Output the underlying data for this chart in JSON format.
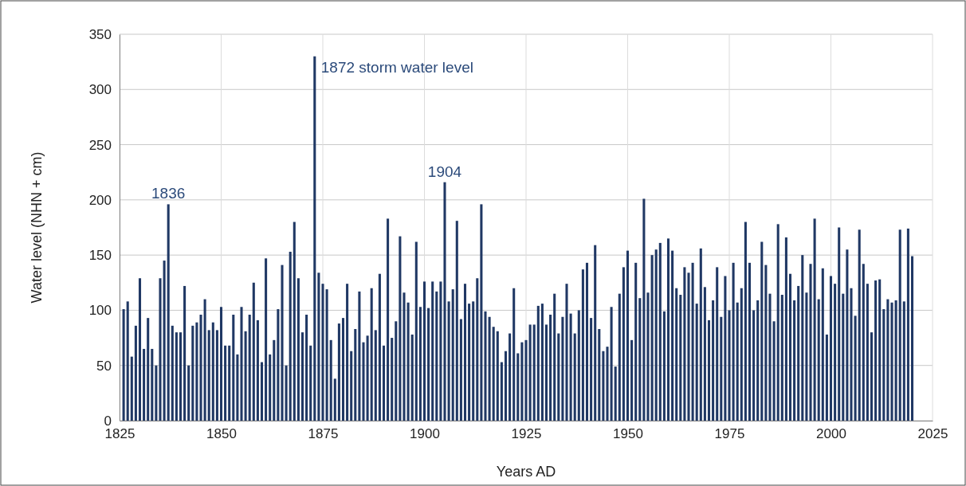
{
  "chart_data": {
    "type": "bar",
    "xlabel": "Years AD",
    "ylabel": "Water level (NHN + cm)",
    "x": [
      1826,
      1827,
      1828,
      1829,
      1830,
      1831,
      1832,
      1833,
      1834,
      1835,
      1836,
      1837,
      1838,
      1839,
      1840,
      1841,
      1842,
      1843,
      1844,
      1845,
      1846,
      1847,
      1848,
      1849,
      1850,
      1851,
      1852,
      1853,
      1854,
      1855,
      1856,
      1857,
      1858,
      1859,
      1860,
      1861,
      1862,
      1863,
      1864,
      1865,
      1866,
      1867,
      1868,
      1869,
      1870,
      1871,
      1872,
      1873,
      1874,
      1875,
      1876,
      1877,
      1878,
      1879,
      1880,
      1881,
      1882,
      1883,
      1884,
      1885,
      1886,
      1887,
      1888,
      1889,
      1890,
      1891,
      1892,
      1893,
      1894,
      1895,
      1896,
      1897,
      1898,
      1899,
      1900,
      1901,
      1902,
      1903,
      1904,
      1905,
      1906,
      1907,
      1908,
      1909,
      1910,
      1911,
      1912,
      1913,
      1914,
      1915,
      1916,
      1917,
      1918,
      1919,
      1920,
      1921,
      1922,
      1923,
      1924,
      1925,
      1926,
      1927,
      1928,
      1929,
      1930,
      1931,
      1932,
      1933,
      1934,
      1935,
      1936,
      1937,
      1938,
      1939,
      1940,
      1941,
      1942,
      1943,
      1944,
      1945,
      1946,
      1947,
      1948,
      1949,
      1950,
      1951,
      1952,
      1953,
      1954,
      1955,
      1956,
      1957,
      1958,
      1959,
      1960,
      1961,
      1962,
      1963,
      1964,
      1965,
      1966,
      1967,
      1968,
      1969,
      1970,
      1971,
      1972,
      1973,
      1974,
      1975,
      1976,
      1977,
      1978,
      1979,
      1980,
      1981,
      1982,
      1983,
      1984,
      1985,
      1986,
      1987,
      1988,
      1989,
      1990,
      1991,
      1992,
      1993,
      1994,
      1995,
      1996,
      1997,
      1998,
      1999,
      2000,
      2001,
      2002,
      2003,
      2004,
      2005,
      2006,
      2007,
      2008,
      2009,
      2010,
      2011,
      2012,
      2013,
      2014,
      2015,
      2016,
      2017,
      2018,
      2019,
      2020
    ],
    "values": [
      101,
      108,
      58,
      86,
      129,
      65,
      93,
      65,
      50,
      129,
      145,
      196,
      86,
      80,
      80,
      122,
      50,
      86,
      89,
      96,
      110,
      82,
      89,
      82,
      103,
      68,
      68,
      96,
      60,
      103,
      81,
      96,
      125,
      91,
      53,
      147,
      60,
      73,
      101,
      141,
      50,
      153,
      180,
      129,
      80,
      96,
      68,
      330,
      134,
      124,
      119,
      73,
      38,
      88,
      93,
      124,
      63,
      83,
      117,
      71,
      77,
      120,
      82,
      133,
      68,
      183,
      75,
      90,
      167,
      116,
      107,
      78,
      162,
      103,
      126,
      102,
      126,
      117,
      126,
      216,
      108,
      119,
      181,
      92,
      124,
      106,
      108,
      129,
      196,
      99,
      94,
      85,
      81,
      53,
      63,
      79,
      120,
      61,
      71,
      73,
      87,
      87,
      104,
      106,
      87,
      96,
      115,
      79,
      94,
      124,
      97,
      79,
      100,
      137,
      143,
      93,
      159,
      83,
      63,
      67,
      103,
      49,
      115,
      139,
      154,
      73,
      143,
      111,
      201,
      116,
      150,
      155,
      161,
      99,
      165,
      154,
      120,
      114,
      139,
      134,
      143,
      106,
      156,
      121,
      91,
      109,
      139,
      94,
      131,
      100,
      143,
      107,
      120,
      180,
      143,
      100,
      109,
      162,
      141,
      115,
      90,
      178,
      114,
      166,
      133,
      109,
      122,
      150,
      116,
      142,
      183,
      110,
      138,
      78,
      131,
      124,
      175,
      115,
      155,
      120,
      95,
      173,
      142,
      124,
      80,
      127,
      128,
      101,
      110,
      107,
      109,
      173,
      108,
      174,
      149
    ],
    "color": "#203864",
    "xlim": [
      1825,
      2025
    ],
    "xticks": [
      1825,
      1850,
      1875,
      1900,
      1925,
      1950,
      1975,
      2000,
      2025
    ],
    "ylim": [
      0,
      350
    ],
    "yticks": [
      0,
      50,
      100,
      150,
      200,
      250,
      300,
      350
    ],
    "grid": true,
    "annotations": [
      {
        "text": "1836",
        "x": 1837,
        "y": 196
      },
      {
        "text": "1872 storm water level",
        "x": 1873,
        "y": 330
      },
      {
        "text": "1904",
        "x": 1905,
        "y": 216
      }
    ]
  }
}
